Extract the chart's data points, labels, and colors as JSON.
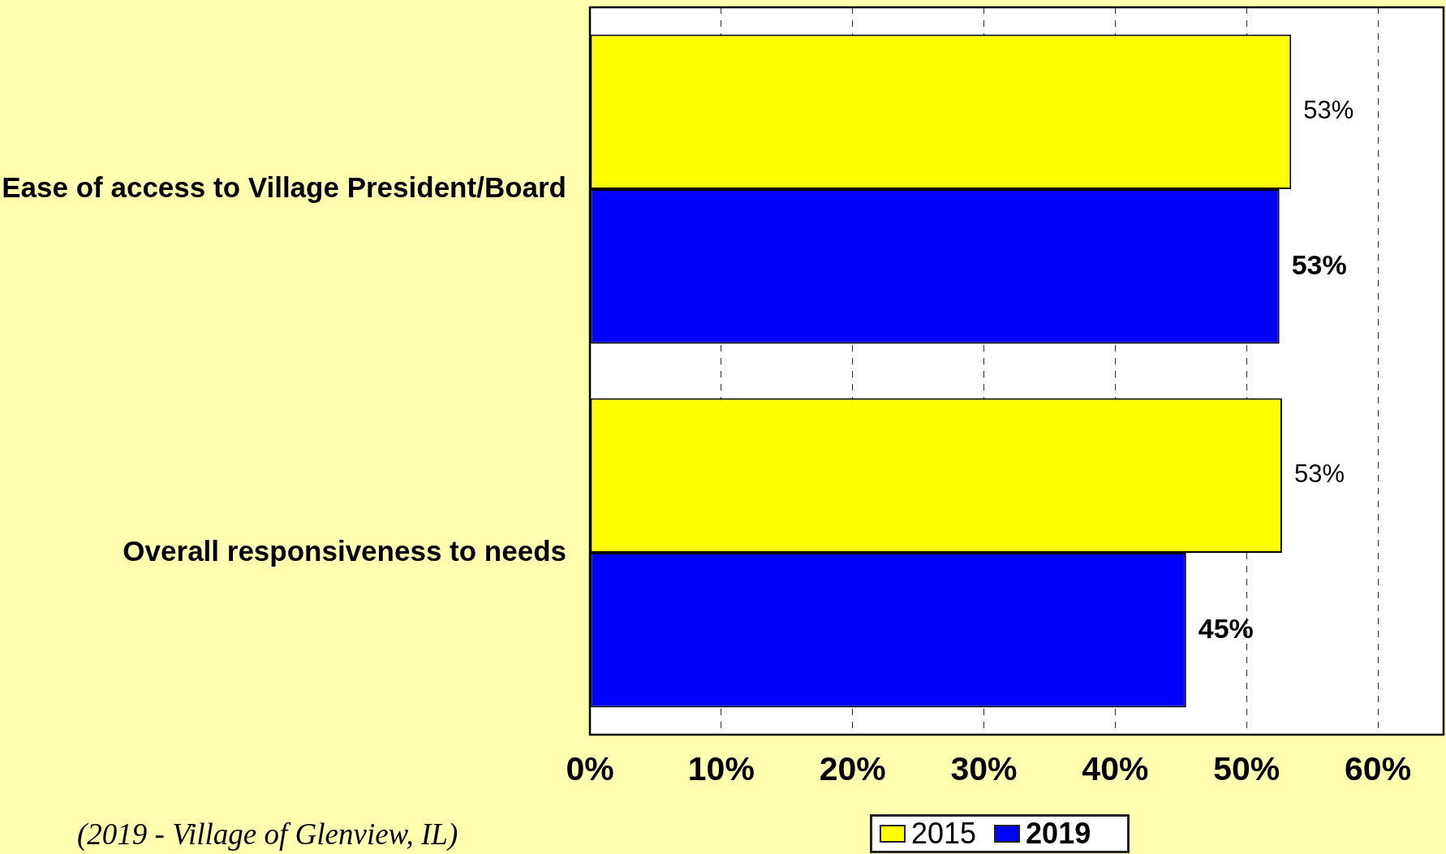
{
  "chart_data": {
    "type": "bar",
    "orientation": "horizontal",
    "categories": [
      "Ease of access to Village President/Board",
      "Overall responsiveness to needs"
    ],
    "series": [
      {
        "name": "2015",
        "color": "#ffff00",
        "values": [
          53.4,
          52.7
        ],
        "value_labels": [
          "53%",
          "53%"
        ]
      },
      {
        "name": "2019",
        "color": "#0000ff",
        "values": [
          52.5,
          45.4
        ],
        "value_labels": [
          "53%",
          "45%"
        ]
      }
    ],
    "xlim": [
      0,
      65
    ],
    "xticks": [
      {
        "value": 0,
        "label": "0%"
      },
      {
        "value": 10,
        "label": "10%"
      },
      {
        "value": 20,
        "label": "20%"
      },
      {
        "value": 30,
        "label": "30%"
      },
      {
        "value": 40,
        "label": "40%"
      },
      {
        "value": 50,
        "label": "50%"
      },
      {
        "value": 60,
        "label": "60%"
      }
    ],
    "grid": "x",
    "legend": "bottom",
    "annotations": [
      "(2019 - Village of Glenview, IL)"
    ]
  }
}
